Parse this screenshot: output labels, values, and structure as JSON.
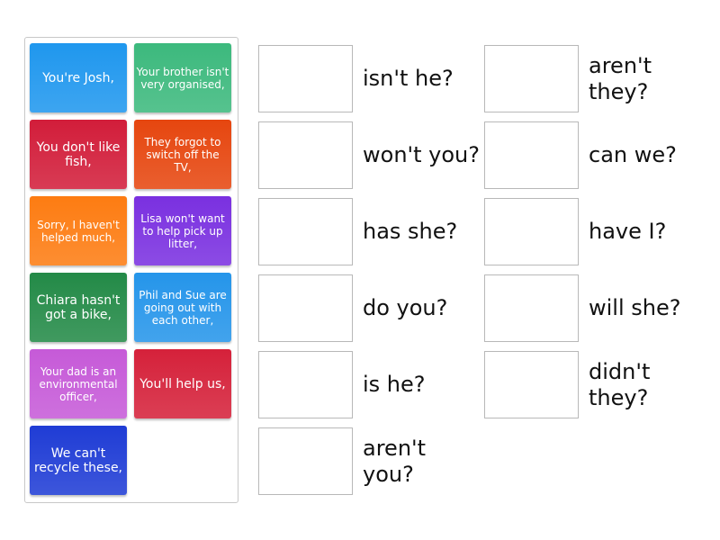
{
  "tiles": [
    {
      "text": "You're Josh,",
      "color": "#1f97ee"
    },
    {
      "text": "Your brother isn't very organised,",
      "color": "#3cb97d"
    },
    {
      "text": "You don't like fish,",
      "color": "#d21d3a"
    },
    {
      "text": "They forgot to switch off the TV,",
      "color": "#e6460f"
    },
    {
      "text": "Sorry, I haven't helped much,",
      "color": "#fd7c12"
    },
    {
      "text": "Lisa won't want to help pick up litter,",
      "color": "#7a30e0"
    },
    {
      "text": "Chiara hasn't got a bike,",
      "color": "#238a47"
    },
    {
      "text": "Phil and Sue are going out with each other,",
      "color": "#2595ea"
    },
    {
      "text": "Your dad is an environmental officer,",
      "color": "#c65ad8"
    },
    {
      "text": "You'll help us,",
      "color": "#d5213a"
    },
    {
      "text": "We can't recycle these,",
      "color": "#1f3cd5"
    }
  ],
  "answers": [
    "isn't he?",
    "won't you?",
    "has she?",
    "do you?",
    "is he?",
    "aren't you?",
    "aren't they?",
    "can we?",
    "have I?",
    "will she?",
    "didn't they?"
  ]
}
